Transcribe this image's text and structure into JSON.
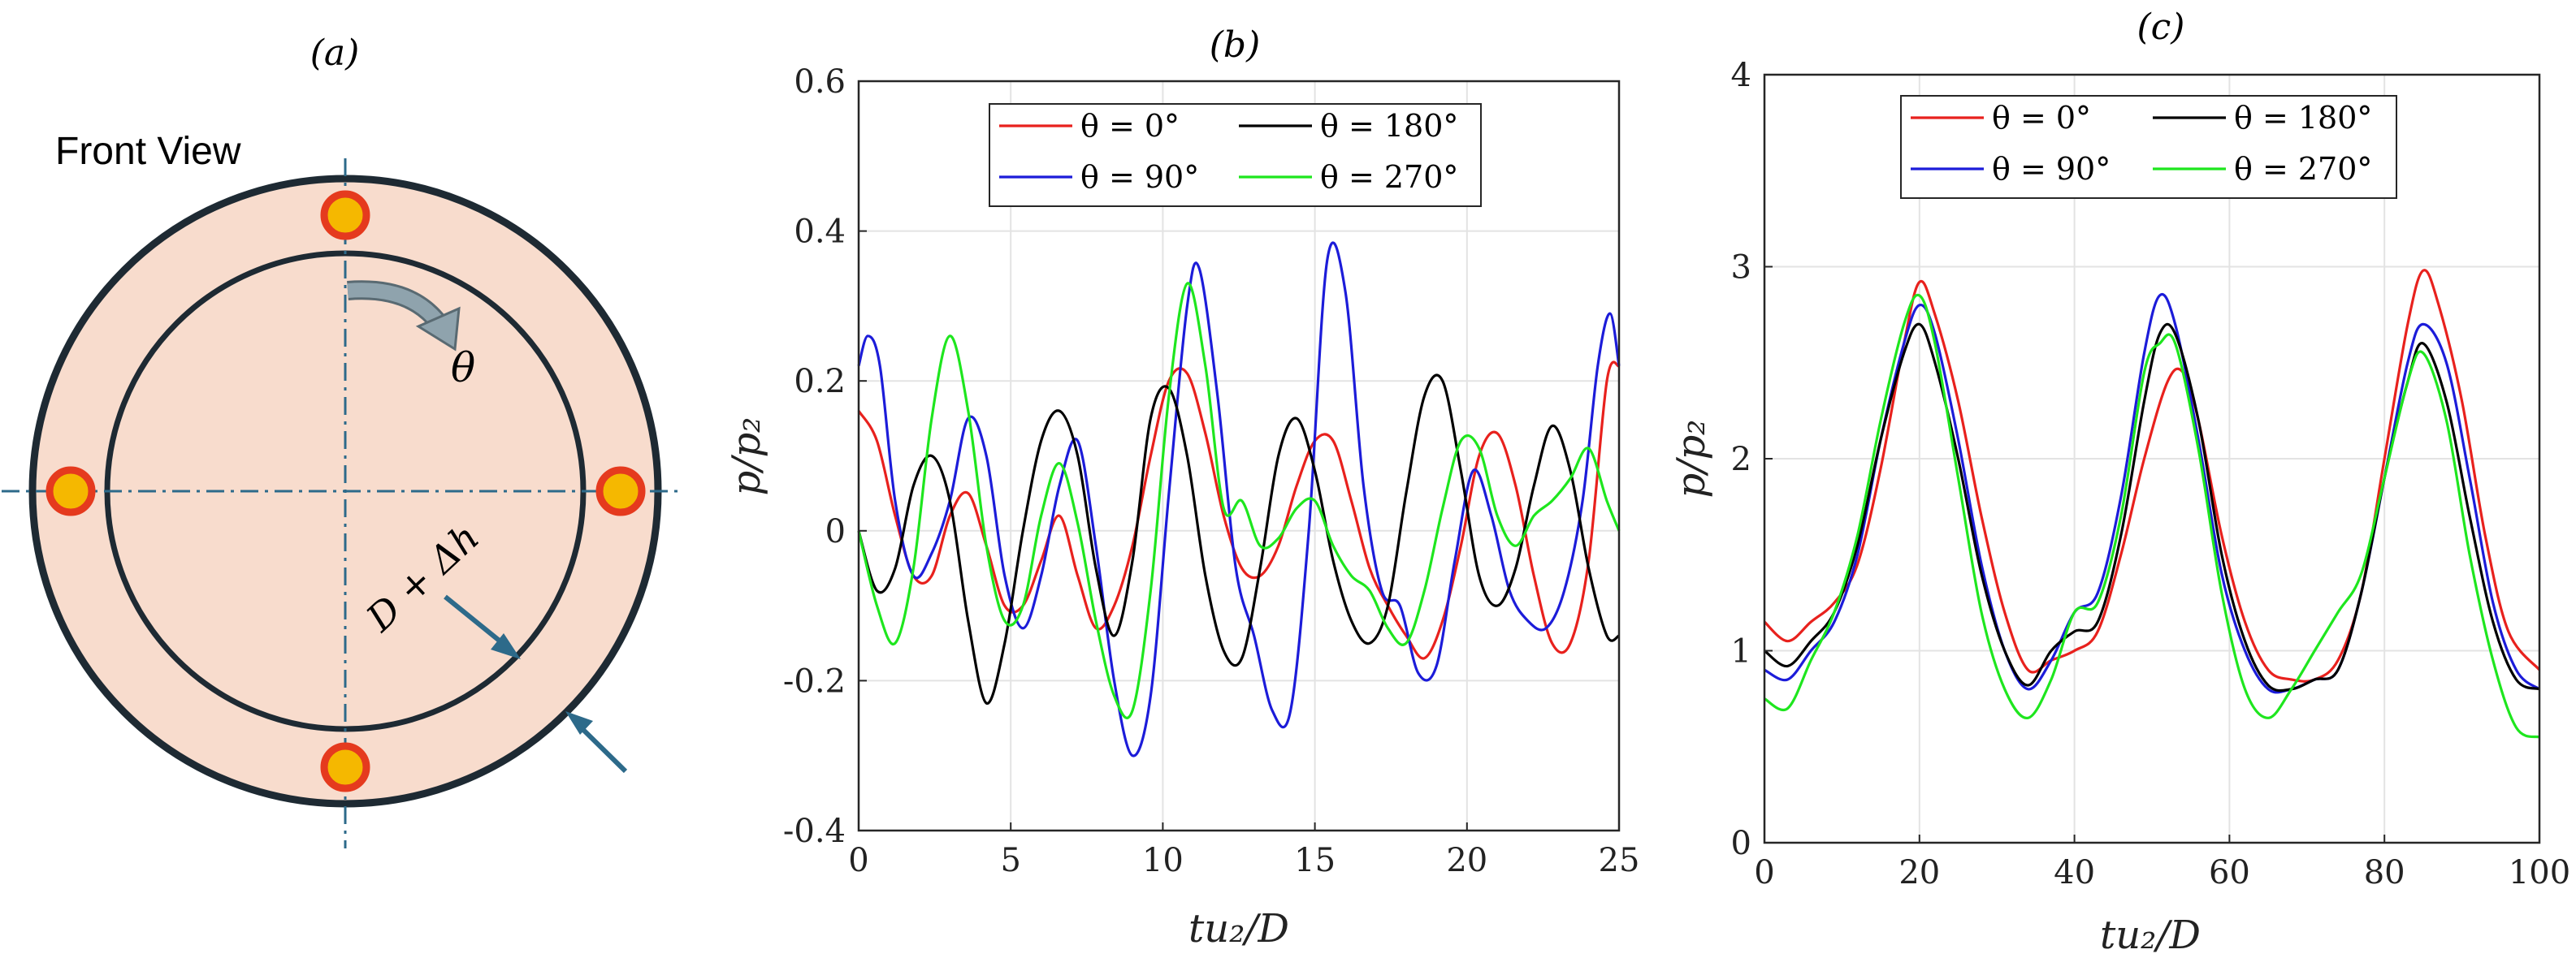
{
  "panel_a": {
    "title": "(a)",
    "view_label": "Front View",
    "angle_symbol": "θ",
    "gap_label": "D + Δh",
    "colors": {
      "ring_fill": "#f8dccd",
      "ring_stroke": "#1e2a33",
      "sensor_fill": "#f5b800",
      "sensor_stroke": "#e53a1e",
      "axis_line": "#2d6a8a",
      "arrow": "#2d6a8a",
      "curved_arrow": "#8fa3ad"
    }
  },
  "chart_data": [
    {
      "panel": "(b)",
      "type": "line",
      "title": "(b)",
      "xlabel": "tu₂/D",
      "ylabel": "p/p₂",
      "xlim": [
        0,
        25
      ],
      "ylim": [
        -0.4,
        0.6
      ],
      "xticks": [
        0,
        5,
        10,
        15,
        20,
        25
      ],
      "xtick_labels": [
        "0",
        "5",
        "10",
        "15",
        "20",
        "25"
      ],
      "yticks": [
        -0.4,
        -0.2,
        0,
        0.2,
        0.4,
        0.6
      ],
      "ytick_labels": [
        "-0.4",
        "-0.2",
        "0",
        "0.2",
        "0.4",
        "0.6"
      ],
      "grid": true,
      "legend_position": "top-center",
      "series": [
        {
          "name": "θ = 0°",
          "color": "#e8211d",
          "x": [
            0,
            0.6,
            1.2,
            1.8,
            2.4,
            3.0,
            3.6,
            4.2,
            4.8,
            5.4,
            6.0,
            6.6,
            7.2,
            7.8,
            8.4,
            9.0,
            9.6,
            10.2,
            10.8,
            11.4,
            12.0,
            12.6,
            13.2,
            13.8,
            14.4,
            15.0,
            15.6,
            16.2,
            16.8,
            17.4,
            18.0,
            18.6,
            19.2,
            19.8,
            20.4,
            21.0,
            21.6,
            22.2,
            22.8,
            23.4,
            24.0,
            24.6,
            25.0
          ],
          "y": [
            0.16,
            0.12,
            0.02,
            -0.06,
            -0.06,
            0.02,
            0.05,
            -0.02,
            -0.1,
            -0.1,
            -0.04,
            0.02,
            -0.06,
            -0.13,
            -0.1,
            -0.02,
            0.1,
            0.2,
            0.21,
            0.13,
            0.02,
            -0.05,
            -0.06,
            -0.02,
            0.06,
            0.12,
            0.12,
            0.04,
            -0.05,
            -0.1,
            -0.14,
            -0.17,
            -0.12,
            -0.02,
            0.1,
            0.13,
            0.06,
            -0.06,
            -0.15,
            -0.15,
            -0.04,
            0.2,
            0.22
          ]
        },
        {
          "name": "θ = 90°",
          "color": "#1c1cd9",
          "x": [
            0,
            0.3,
            0.7,
            1.2,
            1.8,
            2.4,
            3.0,
            3.6,
            4.2,
            4.8,
            5.4,
            6.0,
            6.6,
            7.2,
            7.8,
            8.4,
            9.0,
            9.6,
            10.2,
            10.8,
            11.2,
            11.8,
            12.4,
            13.0,
            13.6,
            14.2,
            14.8,
            15.4,
            16.0,
            16.6,
            17.2,
            17.8,
            18.4,
            19.0,
            19.6,
            20.2,
            20.8,
            21.4,
            22.0,
            22.6,
            23.2,
            23.8,
            24.3,
            24.7,
            25.0
          ],
          "y": [
            0.22,
            0.26,
            0.22,
            0.04,
            -0.06,
            -0.03,
            0.04,
            0.15,
            0.1,
            -0.06,
            -0.13,
            -0.06,
            0.06,
            0.12,
            -0.02,
            -0.2,
            -0.3,
            -0.22,
            0.05,
            0.3,
            0.35,
            0.18,
            -0.05,
            -0.14,
            -0.24,
            -0.24,
            0.0,
            0.36,
            0.32,
            0.06,
            -0.08,
            -0.1,
            -0.19,
            -0.18,
            -0.04,
            0.08,
            0.02,
            -0.08,
            -0.12,
            -0.13,
            -0.08,
            0.04,
            0.22,
            0.29,
            0.22
          ]
        },
        {
          "name": "θ = 180°",
          "color": "#000000",
          "x": [
            0,
            0.6,
            1.2,
            1.8,
            2.4,
            3.0,
            3.6,
            4.2,
            4.8,
            5.4,
            6.0,
            6.6,
            7.2,
            7.8,
            8.4,
            9.0,
            9.6,
            10.2,
            10.8,
            11.4,
            12.0,
            12.6,
            13.2,
            13.8,
            14.4,
            15.0,
            15.6,
            16.2,
            16.8,
            17.4,
            18.0,
            18.6,
            19.2,
            19.8,
            20.4,
            21.0,
            21.6,
            22.2,
            22.8,
            23.4,
            24.0,
            24.6,
            25.0
          ],
          "y": [
            0.0,
            -0.08,
            -0.05,
            0.06,
            0.1,
            0.04,
            -0.12,
            -0.23,
            -0.15,
            0.0,
            0.12,
            0.16,
            0.1,
            -0.05,
            -0.14,
            -0.04,
            0.15,
            0.19,
            0.1,
            -0.06,
            -0.16,
            -0.17,
            -0.05,
            0.1,
            0.15,
            0.08,
            -0.04,
            -0.12,
            -0.15,
            -0.1,
            0.05,
            0.18,
            0.2,
            0.08,
            -0.06,
            -0.1,
            -0.05,
            0.06,
            0.14,
            0.08,
            -0.05,
            -0.14,
            -0.14
          ]
        },
        {
          "name": "θ = 270°",
          "color": "#1ee61e",
          "x": [
            0,
            0.6,
            1.2,
            1.8,
            2.4,
            3.0,
            3.6,
            4.2,
            4.8,
            5.4,
            6.0,
            6.6,
            7.2,
            7.8,
            8.4,
            9.0,
            9.6,
            10.2,
            10.8,
            11.4,
            12.0,
            12.6,
            13.2,
            13.8,
            14.4,
            15.0,
            15.6,
            16.2,
            16.8,
            17.4,
            18.0,
            18.6,
            19.2,
            19.8,
            20.4,
            21.0,
            21.6,
            22.2,
            22.8,
            23.4,
            24.0,
            24.6,
            25.0
          ],
          "y": [
            0.0,
            -0.1,
            -0.15,
            -0.05,
            0.15,
            0.26,
            0.16,
            -0.02,
            -0.12,
            -0.1,
            0.02,
            0.09,
            0.01,
            -0.12,
            -0.22,
            -0.24,
            -0.08,
            0.18,
            0.33,
            0.22,
            0.03,
            0.04,
            -0.02,
            -0.01,
            0.03,
            0.04,
            -0.02,
            -0.06,
            -0.08,
            -0.13,
            -0.15,
            -0.08,
            0.03,
            0.12,
            0.11,
            0.02,
            -0.02,
            0.02,
            0.04,
            0.07,
            0.11,
            0.04,
            0.0
          ]
        }
      ]
    },
    {
      "panel": "(c)",
      "type": "line",
      "title": "(c)",
      "xlabel": "tu₂/D",
      "ylabel": "p/p₂",
      "xlim": [
        0,
        100
      ],
      "ylim": [
        0,
        4
      ],
      "xticks": [
        0,
        20,
        40,
        60,
        80,
        100
      ],
      "xtick_labels": [
        "0",
        "20",
        "40",
        "60",
        "80",
        "100"
      ],
      "yticks": [
        0,
        1,
        2,
        3,
        4
      ],
      "ytick_labels": [
        "0",
        "1",
        "2",
        "3",
        "4"
      ],
      "grid": true,
      "legend_position": "top-center",
      "series": [
        {
          "name": "θ = 0°",
          "color": "#e8211d",
          "x": [
            0,
            3,
            6,
            9,
            12,
            15,
            18,
            20,
            22,
            25,
            28,
            31,
            34,
            37,
            40,
            43,
            46,
            49,
            52,
            54,
            56,
            59,
            62,
            65,
            68,
            71,
            74,
            77,
            80,
            83,
            85,
            87,
            90,
            93,
            96,
            100
          ],
          "y": [
            1.15,
            1.05,
            1.15,
            1.25,
            1.45,
            1.95,
            2.6,
            2.92,
            2.75,
            2.3,
            1.7,
            1.2,
            0.9,
            0.95,
            1.0,
            1.1,
            1.5,
            2.0,
            2.4,
            2.45,
            2.2,
            1.6,
            1.15,
            0.9,
            0.85,
            0.85,
            0.95,
            1.3,
            2.0,
            2.7,
            2.98,
            2.8,
            2.3,
            1.6,
            1.1,
            0.9
          ]
        },
        {
          "name": "θ = 90°",
          "color": "#1c1cd9",
          "x": [
            0,
            3,
            6,
            9,
            12,
            15,
            18,
            20,
            22,
            25,
            28,
            31,
            34,
            37,
            40,
            43,
            46,
            49,
            51,
            53,
            56,
            59,
            62,
            65,
            68,
            71,
            74,
            77,
            80,
            83,
            85,
            88,
            91,
            94,
            97,
            100
          ],
          "y": [
            0.9,
            0.85,
            1.0,
            1.15,
            1.5,
            2.1,
            2.6,
            2.8,
            2.65,
            2.1,
            1.45,
            1.0,
            0.8,
            0.95,
            1.2,
            1.3,
            1.8,
            2.55,
            2.85,
            2.7,
            2.1,
            1.4,
            1.0,
            0.8,
            0.8,
            0.85,
            0.9,
            1.3,
            1.9,
            2.5,
            2.7,
            2.5,
            1.9,
            1.25,
            0.9,
            0.8
          ]
        },
        {
          "name": "θ = 180°",
          "color": "#000000",
          "x": [
            0,
            3,
            6,
            9,
            12,
            15,
            18,
            20,
            22,
            25,
            28,
            31,
            34,
            37,
            40,
            43,
            46,
            49,
            51,
            53,
            56,
            59,
            62,
            65,
            68,
            71,
            74,
            77,
            80,
            83,
            85,
            88,
            91,
            94,
            97,
            100
          ],
          "y": [
            1.0,
            0.92,
            1.05,
            1.2,
            1.55,
            2.1,
            2.55,
            2.7,
            2.5,
            2.0,
            1.4,
            1.0,
            0.82,
            1.0,
            1.1,
            1.15,
            1.6,
            2.3,
            2.65,
            2.65,
            2.2,
            1.5,
            1.05,
            0.82,
            0.8,
            0.85,
            0.9,
            1.3,
            1.9,
            2.4,
            2.6,
            2.3,
            1.7,
            1.15,
            0.85,
            0.8
          ]
        },
        {
          "name": "θ = 270°",
          "color": "#1ee61e",
          "x": [
            0,
            3,
            6,
            9,
            12,
            15,
            18,
            20,
            22,
            25,
            28,
            31,
            34,
            37,
            40,
            43,
            46,
            49,
            51,
            53,
            56,
            59,
            62,
            65,
            68,
            71,
            74,
            77,
            80,
            83,
            85,
            88,
            91,
            94,
            97,
            100
          ],
          "y": [
            0.75,
            0.7,
            0.95,
            1.2,
            1.6,
            2.2,
            2.7,
            2.85,
            2.6,
            1.9,
            1.2,
            0.8,
            0.65,
            0.85,
            1.2,
            1.25,
            1.7,
            2.45,
            2.6,
            2.6,
            2.05,
            1.3,
            0.8,
            0.65,
            0.8,
            1.0,
            1.2,
            1.4,
            1.9,
            2.4,
            2.55,
            2.2,
            1.5,
            0.95,
            0.6,
            0.55
          ]
        }
      ]
    }
  ]
}
